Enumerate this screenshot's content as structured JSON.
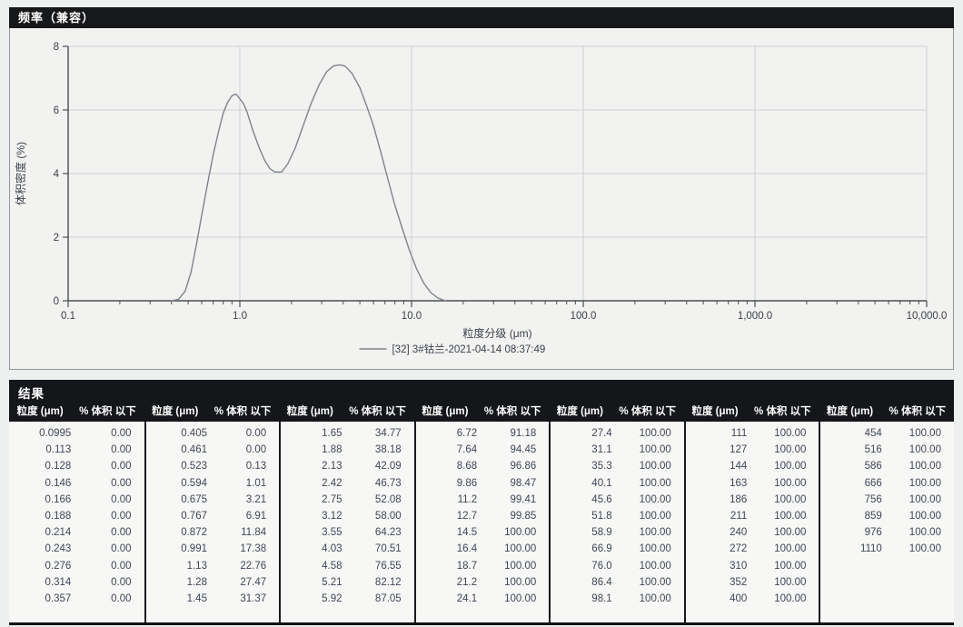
{
  "chart": {
    "title": "频率（兼容）"
  },
  "chart_data": {
    "type": "line",
    "title": "频率（兼容）",
    "xlabel": "粒度分级 (μm)",
    "ylabel": "体积密度 (%)",
    "x_scale": "log",
    "xlim": [
      0.1,
      10000
    ],
    "ylim": [
      0,
      8
    ],
    "y_ticks": [
      0,
      2,
      4,
      6,
      8
    ],
    "x_ticks": [
      0.1,
      1.0,
      10.0,
      100.0,
      1000.0,
      10000.0
    ],
    "x_tick_labels": [
      "0.1",
      "1.0",
      "10.0",
      "100.0",
      "1,000.0",
      "10,000.0"
    ],
    "grid": true,
    "legend_position": "bottom-center",
    "colors": {
      "curve": "#7f848c",
      "grid": "#ccd0d6",
      "axis": "#4a4f57",
      "text": "#3c424c"
    },
    "series": [
      {
        "name": "[32] 3#钴兰-2021-04-14 08:37:49",
        "color": "#7f848c",
        "points": [
          [
            0.4,
            0.0
          ],
          [
            0.44,
            0.05
          ],
          [
            0.48,
            0.3
          ],
          [
            0.52,
            0.9
          ],
          [
            0.56,
            1.8
          ],
          [
            0.6,
            2.7
          ],
          [
            0.65,
            3.7
          ],
          [
            0.7,
            4.6
          ],
          [
            0.75,
            5.3
          ],
          [
            0.8,
            5.9
          ],
          [
            0.85,
            6.25
          ],
          [
            0.9,
            6.45
          ],
          [
            0.95,
            6.5
          ],
          [
            1.0,
            6.35
          ],
          [
            1.05,
            6.2
          ],
          [
            1.1,
            5.95
          ],
          [
            1.2,
            5.3
          ],
          [
            1.3,
            4.8
          ],
          [
            1.4,
            4.4
          ],
          [
            1.5,
            4.15
          ],
          [
            1.6,
            4.05
          ],
          [
            1.75,
            4.05
          ],
          [
            1.9,
            4.3
          ],
          [
            2.1,
            4.8
          ],
          [
            2.3,
            5.4
          ],
          [
            2.6,
            6.2
          ],
          [
            2.9,
            6.8
          ],
          [
            3.2,
            7.2
          ],
          [
            3.5,
            7.38
          ],
          [
            3.8,
            7.42
          ],
          [
            4.1,
            7.38
          ],
          [
            4.5,
            7.15
          ],
          [
            5.0,
            6.7
          ],
          [
            5.5,
            6.1
          ],
          [
            6.0,
            5.5
          ],
          [
            6.6,
            4.7
          ],
          [
            7.3,
            3.8
          ],
          [
            8.0,
            3.0
          ],
          [
            8.8,
            2.3
          ],
          [
            9.7,
            1.6
          ],
          [
            10.7,
            1.0
          ],
          [
            11.8,
            0.55
          ],
          [
            13.0,
            0.25
          ],
          [
            14.3,
            0.08
          ],
          [
            15.8,
            0.0
          ]
        ]
      }
    ]
  },
  "results": {
    "title": "结果",
    "col_size_header": "粒度 (μm)",
    "col_pct_header": "% 体积 以下",
    "groups": [
      [
        [
          "0.0995",
          "0.00"
        ],
        [
          "0.113",
          "0.00"
        ],
        [
          "0.128",
          "0.00"
        ],
        [
          "0.146",
          "0.00"
        ],
        [
          "0.166",
          "0.00"
        ],
        [
          "0.188",
          "0.00"
        ],
        [
          "0.214",
          "0.00"
        ],
        [
          "0.243",
          "0.00"
        ],
        [
          "0.276",
          "0.00"
        ],
        [
          "0.314",
          "0.00"
        ],
        [
          "0.357",
          "0.00"
        ]
      ],
      [
        [
          "0.405",
          "0.00"
        ],
        [
          "0.461",
          "0.00"
        ],
        [
          "0.523",
          "0.13"
        ],
        [
          "0.594",
          "1.01"
        ],
        [
          "0.675",
          "3.21"
        ],
        [
          "0.767",
          "6.91"
        ],
        [
          "0.872",
          "11.84"
        ],
        [
          "0.991",
          "17.38"
        ],
        [
          "1.13",
          "22.76"
        ],
        [
          "1.28",
          "27.47"
        ],
        [
          "1.45",
          "31.37"
        ]
      ],
      [
        [
          "1.65",
          "34.77"
        ],
        [
          "1.88",
          "38.18"
        ],
        [
          "2.13",
          "42.09"
        ],
        [
          "2.42",
          "46.73"
        ],
        [
          "2.75",
          "52.08"
        ],
        [
          "3.12",
          "58.00"
        ],
        [
          "3.55",
          "64.23"
        ],
        [
          "4.03",
          "70.51"
        ],
        [
          "4.58",
          "76.55"
        ],
        [
          "5.21",
          "82.12"
        ],
        [
          "5.92",
          "87.05"
        ]
      ],
      [
        [
          "6.72",
          "91.18"
        ],
        [
          "7.64",
          "94.45"
        ],
        [
          "8.68",
          "96.86"
        ],
        [
          "9.86",
          "98.47"
        ],
        [
          "11.2",
          "99.41"
        ],
        [
          "12.7",
          "99.85"
        ],
        [
          "14.5",
          "100.00"
        ],
        [
          "16.4",
          "100.00"
        ],
        [
          "18.7",
          "100.00"
        ],
        [
          "21.2",
          "100.00"
        ],
        [
          "24.1",
          "100.00"
        ]
      ],
      [
        [
          "27.4",
          "100.00"
        ],
        [
          "31.1",
          "100.00"
        ],
        [
          "35.3",
          "100.00"
        ],
        [
          "40.1",
          "100.00"
        ],
        [
          "45.6",
          "100.00"
        ],
        [
          "51.8",
          "100.00"
        ],
        [
          "58.9",
          "100.00"
        ],
        [
          "66.9",
          "100.00"
        ],
        [
          "76.0",
          "100.00"
        ],
        [
          "86.4",
          "100.00"
        ],
        [
          "98.1",
          "100.00"
        ]
      ],
      [
        [
          "111",
          "100.00"
        ],
        [
          "127",
          "100.00"
        ],
        [
          "144",
          "100.00"
        ],
        [
          "163",
          "100.00"
        ],
        [
          "186",
          "100.00"
        ],
        [
          "211",
          "100.00"
        ],
        [
          "240",
          "100.00"
        ],
        [
          "272",
          "100.00"
        ],
        [
          "310",
          "100.00"
        ],
        [
          "352",
          "100.00"
        ],
        [
          "400",
          "100.00"
        ]
      ],
      [
        [
          "454",
          "100.00"
        ],
        [
          "516",
          "100.00"
        ],
        [
          "586",
          "100.00"
        ],
        [
          "666",
          "100.00"
        ],
        [
          "756",
          "100.00"
        ],
        [
          "859",
          "100.00"
        ],
        [
          "976",
          "100.00"
        ],
        [
          "1110",
          "100.00"
        ]
      ]
    ]
  }
}
